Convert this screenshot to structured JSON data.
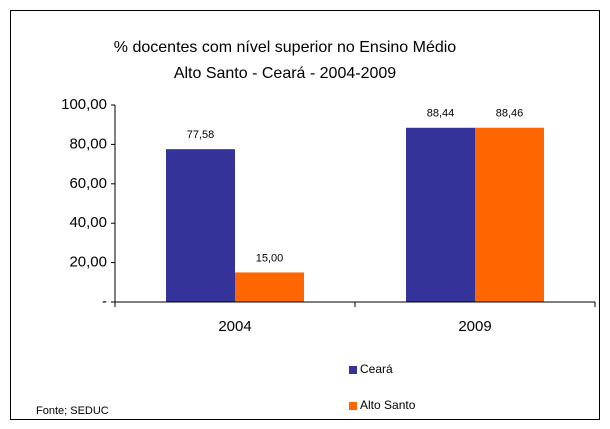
{
  "chart_data": {
    "type": "bar",
    "title": [
      "% docentes com nível  superior no Ensino Médio",
      "Alto Santo  -  Ceará - 2004-2009"
    ],
    "categories": [
      "2004",
      "2009"
    ],
    "series": [
      {
        "name": "Ceará",
        "color": "#333399",
        "values": [
          77.58,
          88.44
        ],
        "value_labels": [
          "77,58",
          "88,44"
        ]
      },
      {
        "name": "Alto Santo",
        "color": "#ff6600",
        "values": [
          15.0,
          88.46
        ],
        "value_labels": [
          "15,00",
          "88,46"
        ]
      }
    ],
    "ylim": [
      0,
      100
    ],
    "yticks": [
      {
        "value": 0,
        "label": "-"
      },
      {
        "value": 20,
        "label": "20,00"
      },
      {
        "value": 40,
        "label": "40,00"
      },
      {
        "value": 60,
        "label": "60,00"
      },
      {
        "value": 80,
        "label": "80,00"
      },
      {
        "value": 100,
        "label": "100,00"
      }
    ],
    "source": "Fonte; SEDUC"
  }
}
